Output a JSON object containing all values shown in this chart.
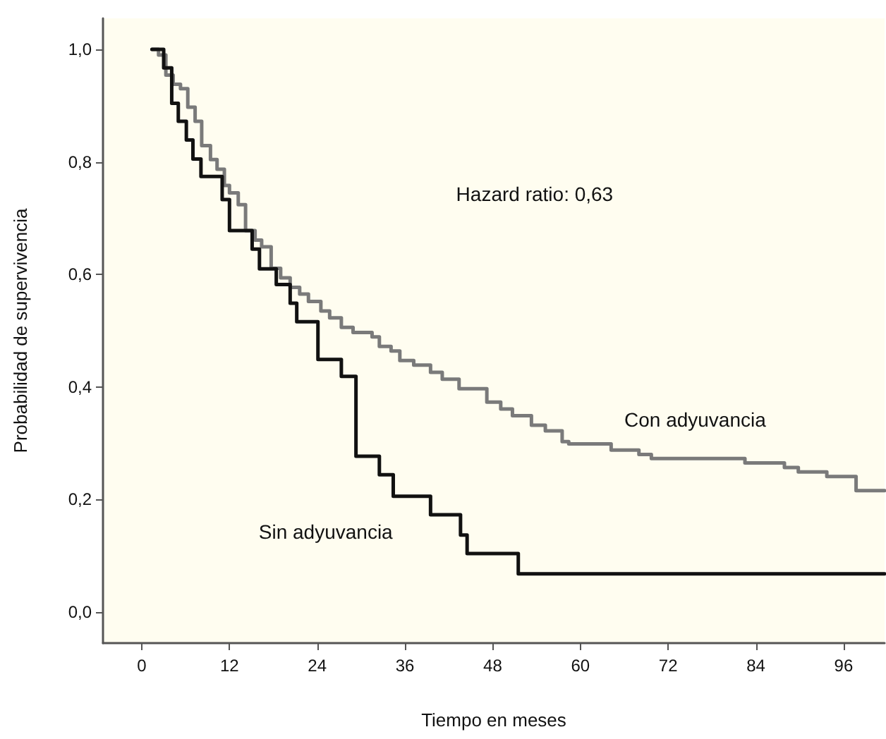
{
  "chart_data": {
    "type": "step",
    "xlabel": "Tiempo en meses",
    "ylabel": "Probabilidad de supervivencia",
    "annotations": [
      "Hazard ratio: 0,63"
    ],
    "xlim": [
      -5.3,
      101.6
    ],
    "xticks": [
      0,
      12,
      24,
      36,
      48,
      60,
      72,
      84,
      96
    ],
    "ylim": [
      -0.055,
      1.055
    ],
    "yticks": [
      {
        "value": 0,
        "label": "0,0"
      },
      {
        "value": 0.2,
        "label": "0,2"
      },
      {
        "value": 0.4,
        "label": "0,4"
      },
      {
        "value": 0.6,
        "label": "0,6"
      },
      {
        "value": 0.8,
        "label": "0,8"
      },
      {
        "value": 1,
        "label": "1,0"
      }
    ],
    "grid": false,
    "legend": false,
    "marker": "none",
    "line_style": "solid",
    "series": [
      {
        "name": "Con adyuvancia",
        "color": "#7a7a7a",
        "x": [
          1.4,
          2.3,
          3.3,
          4.3,
          5.3,
          6.3,
          7.3,
          8.2,
          9.4,
          10.3,
          11.3,
          12.0,
          13.2,
          14.2,
          15.5,
          16.4,
          17.7,
          19.0,
          20.3,
          21.6,
          22.8,
          24.5,
          25.7,
          27.3,
          28.9,
          31.5,
          32.5,
          34.1,
          35.3,
          37.2,
          39.5,
          41.1,
          43.4,
          47.2,
          49.1,
          50.7,
          53.3,
          55.2,
          57.5,
          58.4,
          64.2,
          68.0,
          69.7,
          82.5,
          87.9,
          89.8,
          93.7,
          97.7,
          101.6
        ],
        "values": [
          1.0,
          0.99,
          0.954,
          0.938,
          0.93,
          0.897,
          0.872,
          0.829,
          0.804,
          0.787,
          0.758,
          0.745,
          0.724,
          0.678,
          0.661,
          0.649,
          0.611,
          0.594,
          0.577,
          0.565,
          0.552,
          0.535,
          0.523,
          0.506,
          0.497,
          0.489,
          0.472,
          0.464,
          0.447,
          0.439,
          0.426,
          0.414,
          0.397,
          0.373,
          0.361,
          0.349,
          0.332,
          0.322,
          0.303,
          0.299,
          0.288,
          0.28,
          0.273,
          0.265,
          0.257,
          0.249,
          0.241,
          0.216,
          0.216
        ]
      },
      {
        "name": "Sin adyuvancia",
        "color": "#111111",
        "x": [
          1.4,
          3.0,
          4.1,
          5.0,
          6.1,
          7.0,
          8.1,
          11.0,
          12.0,
          15.1,
          16.1,
          18.4,
          20.3,
          21.2,
          24.1,
          27.3,
          29.3,
          32.5,
          34.4,
          39.5,
          43.6,
          44.5,
          51.5,
          101.6
        ],
        "values": [
          1.0,
          0.967,
          0.904,
          0.872,
          0.839,
          0.805,
          0.774,
          0.733,
          0.678,
          0.645,
          0.61,
          0.582,
          0.549,
          0.516,
          0.449,
          0.419,
          0.277,
          0.244,
          0.206,
          0.173,
          0.137,
          0.104,
          0.068,
          0.068
        ]
      }
    ]
  }
}
